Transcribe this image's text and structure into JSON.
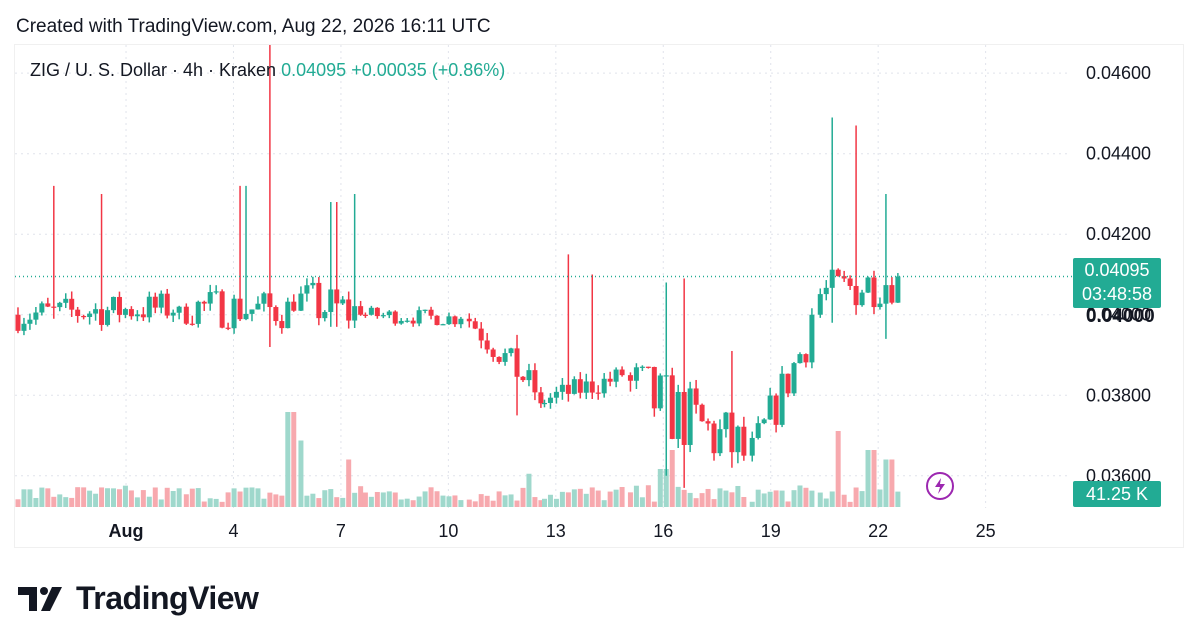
{
  "header": {
    "created": "Created with TradingView.com, Aug 22, 2026 16:11 UTC"
  },
  "legend": {
    "symbol": "ZIG / U. S. Dollar · 4h · Kraken",
    "last": "0.04095",
    "change": "+0.00035 (+0.86%)"
  },
  "price_tag": {
    "price": "0.04095",
    "countdown": "03:48:58"
  },
  "pinned_level": "0.04000",
  "volume_tag": "41.25 K",
  "brand": {
    "name": "TradingView"
  },
  "colors": {
    "up": "#22ab94",
    "down": "#f23645",
    "up_volume": "#9fd8cc",
    "down_volume": "#f7a9ae",
    "grid": "#e0e3eb",
    "text": "#131722",
    "lightning": "#9c27b0"
  },
  "icons": {
    "lightning": "lightning-icon",
    "logo": "tradingview-logo-icon"
  },
  "chart_data": {
    "type": "candlestick",
    "interval": "4h",
    "y_axis": {
      "ticks": [
        "0.03600",
        "0.03800",
        "0.04000",
        "0.04200",
        "0.04400",
        "0.04600"
      ],
      "range": [
        0.0352,
        0.0467
      ]
    },
    "x_axis": {
      "ticks": [
        "Aug",
        "4",
        "7",
        "10",
        "13",
        "16",
        "19",
        "22",
        "25"
      ],
      "tick_days": [
        1,
        4,
        7,
        10,
        13,
        16,
        19,
        22,
        25
      ],
      "range_days": [
        -2.1,
        27.3
      ]
    },
    "last_price": 0.04095,
    "grid": true,
    "segments": [
      {
        "from_day": -2.1,
        "to_day": 2.6,
        "start": 0.04,
        "end": 0.0402,
        "noise": 0.0004,
        "wick": 0.0002,
        "spikes": [
          [
            0.2,
            0.0432,
            0.0399
          ],
          [
            0.5,
            0.043,
            0.0396
          ]
        ]
      },
      {
        "from_day": 2.6,
        "to_day": 5.8,
        "start": 0.0402,
        "end": 0.0401,
        "noise": 0.0005,
        "wick": 0.0002,
        "spikes": [
          [
            0.5,
            0.0432,
            0.0401
          ],
          [
            0.75,
            0.0467,
            0.0392
          ]
        ]
      },
      {
        "from_day": 5.8,
        "to_day": 7.6,
        "start": 0.0403,
        "end": 0.04,
        "noise": 0.0006,
        "wick": 0.0002,
        "spikes": [
          [
            0.5,
            0.0428,
            0.0397
          ],
          [
            0.8,
            0.043,
            0.0398
          ]
        ]
      },
      {
        "from_day": 7.6,
        "to_day": 10.5,
        "start": 0.04,
        "end": 0.0399,
        "noise": 0.0002,
        "wick": 0.0001,
        "spikes": []
      },
      {
        "from_day": 10.5,
        "to_day": 12.6,
        "start": 0.0399,
        "end": 0.0378,
        "noise": 0.0004,
        "wick": 0.0002,
        "spikes": [
          [
            0.6,
            0.0395,
            0.0375
          ]
        ]
      },
      {
        "from_day": 12.6,
        "to_day": 15.0,
        "start": 0.0379,
        "end": 0.0385,
        "noise": 0.0003,
        "wick": 0.0002,
        "spikes": [
          [
            0.3,
            0.0415,
            0.038
          ],
          [
            0.6,
            0.041,
            0.0383
          ]
        ]
      },
      {
        "from_day": 15.0,
        "to_day": 18.4,
        "start": 0.0382,
        "end": 0.0365,
        "noise": 0.0009,
        "wick": 0.0003,
        "spikes": [
          [
            0.3,
            0.0408,
            0.036
          ],
          [
            0.45,
            0.0409,
            0.0357
          ],
          [
            0.85,
            0.0391,
            0.0362
          ]
        ]
      },
      {
        "from_day": 18.4,
        "to_day": 20.3,
        "start": 0.0365,
        "end": 0.04,
        "noise": 0.0006,
        "wick": 0.0002,
        "spikes": []
      },
      {
        "from_day": 20.3,
        "to_day": 22.6,
        "start": 0.0405,
        "end": 0.04095,
        "noise": 0.0006,
        "wick": 0.0002,
        "spikes": [
          [
            0.15,
            0.0449,
            0.0398
          ],
          [
            0.4,
            0.0447,
            0.04
          ],
          [
            0.8,
            0.043,
            0.0394
          ]
        ]
      }
    ],
    "volume_spikes": [
      [
        5.6,
        1.0
      ],
      [
        5.8,
        0.7
      ],
      [
        7.2,
        0.5
      ],
      [
        12.3,
        0.35
      ],
      [
        16.0,
        0.4
      ],
      [
        16.3,
        0.6
      ],
      [
        20.9,
        0.8
      ],
      [
        21.8,
        0.6
      ],
      [
        22.3,
        0.5
      ]
    ]
  }
}
